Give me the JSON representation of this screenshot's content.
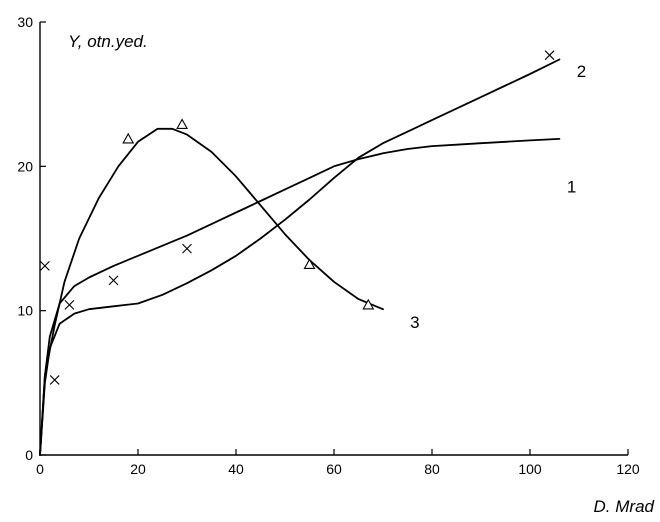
{
  "chart_data": {
    "type": "scatter",
    "ylabel": "Y, otn.yed.",
    "xlabel": "D. Mrad",
    "xlim": [
      0,
      120
    ],
    "ylim": [
      0,
      30
    ],
    "x_ticks": [
      0,
      20,
      40,
      60,
      80,
      100,
      120
    ],
    "y_ticks": [
      0,
      10,
      20,
      30
    ],
    "grid": false,
    "series": [
      {
        "name": "1",
        "kind": "line",
        "x": [
          0,
          1,
          2,
          4,
          7,
          10,
          15,
          20,
          25,
          30,
          35,
          40,
          45,
          50,
          55,
          60,
          65,
          70,
          75,
          80,
          85,
          90,
          95,
          100,
          106
        ],
        "y": [
          0,
          5.5,
          8.2,
          10.5,
          11.7,
          12.3,
          13.1,
          13.8,
          14.5,
          15.2,
          16.0,
          16.8,
          17.6,
          18.4,
          19.2,
          20.0,
          20.5,
          20.9,
          21.2,
          21.4,
          21.5,
          21.6,
          21.7,
          21.8,
          21.9
        ]
      },
      {
        "name": "2",
        "kind": "line",
        "x": [
          0,
          1,
          2,
          4,
          7,
          10,
          15,
          20,
          25,
          30,
          35,
          40,
          45,
          50,
          55,
          60,
          65,
          70,
          75,
          80,
          85,
          90,
          95,
          100,
          106
        ],
        "y": [
          0,
          5.0,
          7.4,
          9.1,
          9.8,
          10.1,
          10.3,
          10.5,
          11.1,
          11.9,
          12.8,
          13.8,
          15.0,
          16.3,
          17.7,
          19.2,
          20.6,
          21.6,
          22.4,
          23.2,
          24.0,
          24.8,
          25.6,
          26.4,
          27.4
        ]
      },
      {
        "name": "3",
        "kind": "line",
        "x": [
          0,
          1,
          3,
          5,
          8,
          12,
          16,
          20,
          24,
          27,
          30,
          35,
          40,
          45,
          50,
          55,
          60,
          65,
          70
        ],
        "y": [
          0,
          5.5,
          9.0,
          12.0,
          15.0,
          17.8,
          20.0,
          21.7,
          22.6,
          22.6,
          22.2,
          21.0,
          19.3,
          17.3,
          15.3,
          13.5,
          12.0,
          10.8,
          10.1
        ]
      },
      {
        "name": "",
        "kind": "markers",
        "marker": "x",
        "x": [
          1,
          3,
          6,
          15,
          30,
          104
        ],
        "y": [
          13.1,
          5.2,
          10.4,
          12.1,
          14.3,
          27.7
        ]
      },
      {
        "name": "",
        "kind": "markers",
        "marker": "triangle",
        "x": [
          18,
          29,
          55,
          67
        ],
        "y": [
          21.9,
          22.9,
          13.2,
          10.4
        ]
      }
    ],
    "annotations": [
      {
        "text": "1",
        "x": 108.5,
        "y": 18.6
      },
      {
        "text": "2",
        "x": 110.5,
        "y": 26.6
      },
      {
        "text": "3",
        "x": 76.5,
        "y": 9.2
      }
    ]
  }
}
